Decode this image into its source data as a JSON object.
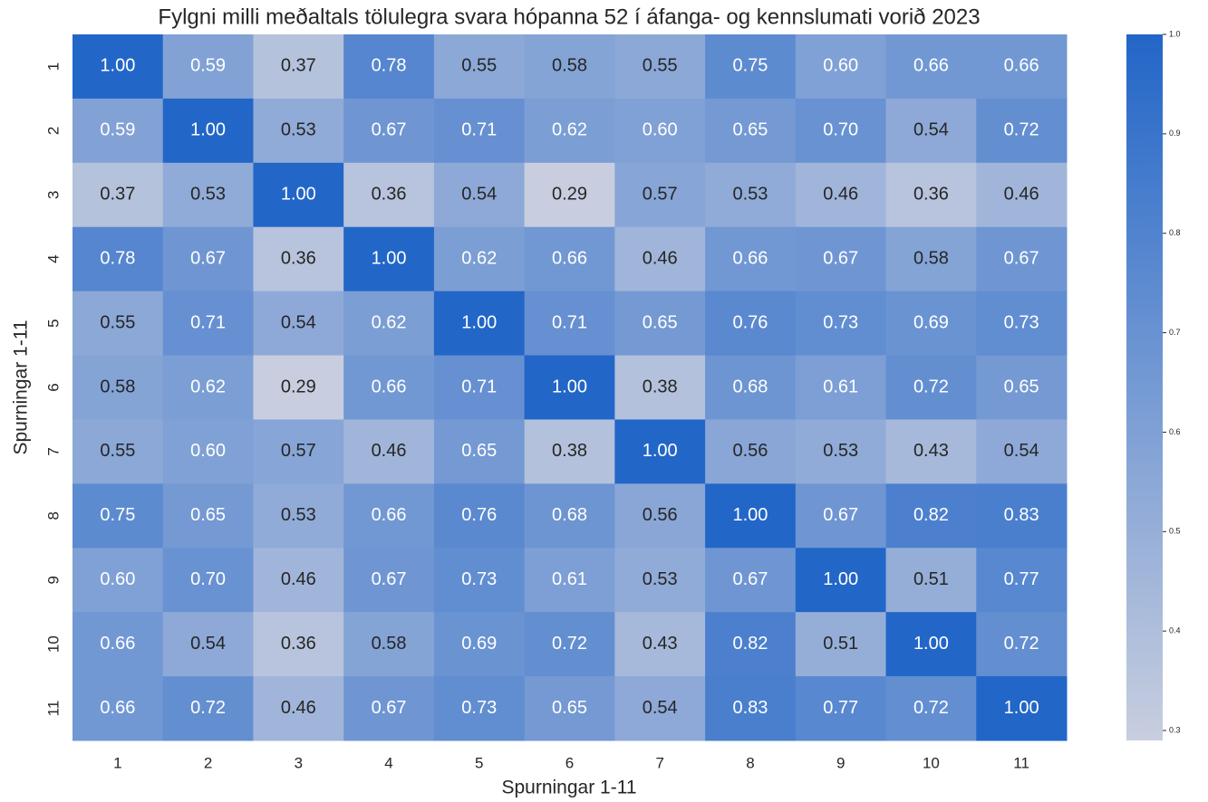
{
  "chart_data": {
    "type": "heatmap",
    "title": "Fylgni milli meðaltals tölulegra svara hópanna 52 í áfanga- og kennslumati vorið 2023",
    "xlabel": "Spurningar 1-11",
    "ylabel": "Spurningar 1-11",
    "x": [
      "1",
      "2",
      "3",
      "4",
      "5",
      "6",
      "7",
      "8",
      "9",
      "10",
      "11"
    ],
    "y": [
      "1",
      "2",
      "3",
      "4",
      "5",
      "6",
      "7",
      "8",
      "9",
      "10",
      "11"
    ],
    "values": [
      [
        1.0,
        0.59,
        0.37,
        0.78,
        0.55,
        0.58,
        0.55,
        0.75,
        0.6,
        0.66,
        0.66
      ],
      [
        0.59,
        1.0,
        0.53,
        0.67,
        0.71,
        0.62,
        0.6,
        0.65,
        0.7,
        0.54,
        0.72
      ],
      [
        0.37,
        0.53,
        1.0,
        0.36,
        0.54,
        0.29,
        0.57,
        0.53,
        0.46,
        0.36,
        0.46
      ],
      [
        0.78,
        0.67,
        0.36,
        1.0,
        0.62,
        0.66,
        0.46,
        0.66,
        0.67,
        0.58,
        0.67
      ],
      [
        0.55,
        0.71,
        0.54,
        0.62,
        1.0,
        0.71,
        0.65,
        0.76,
        0.73,
        0.69,
        0.73
      ],
      [
        0.58,
        0.62,
        0.29,
        0.66,
        0.71,
        1.0,
        0.38,
        0.68,
        0.61,
        0.72,
        0.65
      ],
      [
        0.55,
        0.6,
        0.57,
        0.46,
        0.65,
        0.38,
        1.0,
        0.56,
        0.53,
        0.43,
        0.54
      ],
      [
        0.75,
        0.65,
        0.53,
        0.66,
        0.76,
        0.68,
        0.56,
        1.0,
        0.67,
        0.82,
        0.83
      ],
      [
        0.6,
        0.7,
        0.46,
        0.67,
        0.73,
        0.61,
        0.53,
        0.67,
        1.0,
        0.51,
        0.77
      ],
      [
        0.66,
        0.54,
        0.36,
        0.58,
        0.69,
        0.72,
        0.43,
        0.82,
        0.51,
        1.0,
        0.72
      ],
      [
        0.66,
        0.72,
        0.46,
        0.67,
        0.73,
        0.65,
        0.54,
        0.83,
        0.77,
        0.72,
        1.0
      ]
    ],
    "value_labels": [
      [
        "1.00",
        "0.59",
        "0.37",
        "0.78",
        "0.55",
        "0.58",
        "0.55",
        "0.75",
        "0.60",
        "0.66",
        "0.66"
      ],
      [
        "0.59",
        "1.00",
        "0.53",
        "0.67",
        "0.71",
        "0.62",
        "0.60",
        "0.65",
        "0.70",
        "0.54",
        "0.72"
      ],
      [
        "0.37",
        "0.53",
        "1.00",
        "0.36",
        "0.54",
        "0.29",
        "0.57",
        "0.53",
        "0.46",
        "0.36",
        "0.46"
      ],
      [
        "0.78",
        "0.67",
        "0.36",
        "1.00",
        "0.62",
        "0.66",
        "0.46",
        "0.66",
        "0.67",
        "0.58",
        "0.67"
      ],
      [
        "0.55",
        "0.71",
        "0.54",
        "0.62",
        "1.00",
        "0.71",
        "0.65",
        "0.76",
        "0.73",
        "0.69",
        "0.73"
      ],
      [
        "0.58",
        "0.62",
        "0.29",
        "0.66",
        "0.71",
        "1.00",
        "0.38",
        "0.68",
        "0.61",
        "0.72",
        "0.65"
      ],
      [
        "0.55",
        "0.60",
        "0.57",
        "0.46",
        "0.65",
        "0.38",
        "1.00",
        "0.56",
        "0.53",
        "0.43",
        "0.54"
      ],
      [
        "0.75",
        "0.65",
        "0.53",
        "0.66",
        "0.76",
        "0.68",
        "0.56",
        "1.00",
        "0.67",
        "0.82",
        "0.83"
      ],
      [
        "0.60",
        "0.70",
        "0.46",
        "0.67",
        "0.73",
        "0.61",
        "0.53",
        "0.67",
        "1.00",
        "0.51",
        "0.77"
      ],
      [
        "0.66",
        "0.54",
        "0.36",
        "0.58",
        "0.69",
        "0.72",
        "0.43",
        "0.82",
        "0.51",
        "1.00",
        "0.72"
      ],
      [
        "0.66",
        "0.72",
        "0.46",
        "0.67",
        "0.73",
        "0.65",
        "0.54",
        "0.83",
        "0.77",
        "0.72",
        "1.00"
      ]
    ],
    "cmap": [
      "#c8cedf",
      "#2266c8"
    ],
    "clim": [
      0.29,
      1.0
    ],
    "cticks": [
      0.3,
      0.4,
      0.5,
      0.6,
      0.7,
      0.8,
      0.9,
      {
        "value": 1,
        "label": "1.0"
      }
    ]
  }
}
